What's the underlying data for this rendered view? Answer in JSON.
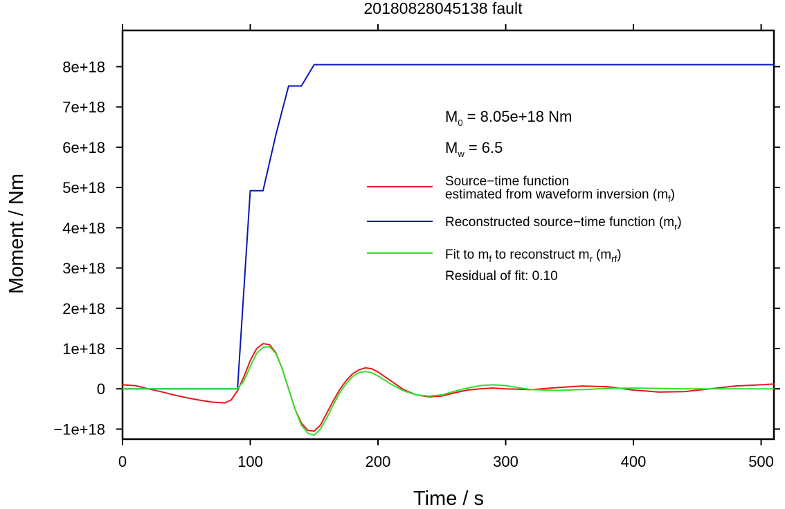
{
  "chart_data": {
    "type": "line",
    "title": "20180828045138 fault",
    "xlabel": "Time / s",
    "ylabel": "Moment / Nm",
    "xlim": [
      0,
      510
    ],
    "ylim": [
      -1.25e+18,
      8.9e+18
    ],
    "x_ticks": [
      0,
      100,
      200,
      300,
      400,
      500
    ],
    "x_tick_labels": [
      "0",
      "100",
      "200",
      "300",
      "400",
      "500"
    ],
    "y_ticks": [
      -1e+18,
      0,
      1e+18,
      2e+18,
      3e+18,
      4e+18,
      5e+18,
      6e+18,
      7e+18,
      8e+18
    ],
    "y_tick_labels": [
      "−1e+18",
      "0",
      "1e+18",
      "2e+18",
      "3e+18",
      "4e+18",
      "5e+18",
      "6e+18",
      "7e+18",
      "8e+18"
    ],
    "grid": false,
    "legend_position": "right",
    "annotations": {
      "m0_main": "M",
      "m0_sub": "0",
      "m0_rest": " = 8.05e+18 Nm",
      "mw_main": "M",
      "mw_sub": "w",
      "mw_rest": " = 6.5",
      "residual": "Residual of fit: 0.10"
    },
    "series": [
      {
        "name": "Source−time function estimated from waveform inversion (m_f)",
        "legend_line1": "Source−time function",
        "legend_line2_main": "estimated from waveform inversion (m",
        "legend_line2_sub": "f",
        "legend_line2_end": ")",
        "color": "#e8161b",
        "x": [
          0,
          10,
          20,
          30,
          40,
          50,
          60,
          70,
          80,
          85,
          90,
          95,
          100,
          105,
          110,
          115,
          120,
          125,
          130,
          135,
          140,
          145,
          150,
          155,
          160,
          165,
          170,
          175,
          180,
          185,
          190,
          195,
          200,
          210,
          220,
          230,
          240,
          250,
          260,
          270,
          280,
          290,
          300,
          320,
          340,
          360,
          380,
          400,
          420,
          440,
          460,
          480,
          500,
          510
        ],
        "y": [
          1e+17,
          8e+16,
          0.0,
          -7e+16,
          -1.5e+17,
          -2.2e+17,
          -2.8e+17,
          -3.3e+17,
          -3.5e+17,
          -2.8e+17,
          -5e+16,
          3e+17,
          7e+17,
          1e+18,
          1.12e+18,
          1.1e+18,
          9e+17,
          5e+17,
          0.0,
          -5e+17,
          -8.5e+17,
          -1.03e+18,
          -1.05e+18,
          -9e+17,
          -6e+17,
          -3e+17,
          -2e+16,
          2e+17,
          3.7e+17,
          4.7e+17,
          5.2e+17,
          5e+17,
          4.2e+17,
          2e+17,
          -2e+16,
          -1.5e+17,
          -2e+17,
          -1.8e+17,
          -1e+17,
          -3e+16,
          0.0,
          2e+16,
          0.0,
          -2e+16,
          3e+16,
          7e+16,
          5e+16,
          -3e+16,
          -8e+16,
          -7e+16,
          0.0,
          7e+16,
          1e+17,
          1.2e+17
        ]
      },
      {
        "name": "Reconstructed source−time function (m_r)",
        "legend_main": "Reconstructed source−time function (m",
        "legend_sub": "r",
        "legend_end": ")",
        "color": "#0b16b8",
        "x": [
          0,
          90,
          100,
          110,
          120,
          130,
          140,
          150,
          510
        ],
        "y": [
          0,
          0,
          4.92e+18,
          4.92e+18,
          6.3e+18,
          7.52e+18,
          7.52e+18,
          8.05e+18,
          8.05e+18
        ]
      },
      {
        "name": "Fit to m_f to reconstruct m_r (m_rf)",
        "legend_p1": "Fit to m",
        "legend_s1": "f",
        "legend_p2": " to reconstruct m",
        "legend_s2": "r",
        "legend_p3": " (m",
        "legend_s3": "rf",
        "legend_p4": ")",
        "color": "#33e02a",
        "x": [
          0,
          90,
          95,
          100,
          105,
          110,
          115,
          120,
          125,
          130,
          135,
          140,
          145,
          150,
          155,
          160,
          165,
          170,
          175,
          180,
          185,
          190,
          195,
          200,
          210,
          220,
          230,
          240,
          250,
          260,
          270,
          280,
          290,
          300,
          310,
          320,
          340,
          360,
          380,
          400,
          420,
          440,
          460,
          480,
          500,
          510
        ],
        "y": [
          0,
          0,
          2e+17,
          5.5e+17,
          8.8e+17,
          1.03e+18,
          1.05e+18,
          8.8e+17,
          5e+17,
          0.0,
          -5e+17,
          -9e+17,
          -1.1e+18,
          -1.15e+18,
          -1e+18,
          -7.2e+17,
          -4e+17,
          -1e+17,
          1.2e+17,
          3e+17,
          4e+17,
          4.3e+17,
          4e+17,
          3.2e+17,
          1.2e+17,
          -5e+16,
          -1.5e+17,
          -1.8e+17,
          -1.5e+17,
          -6e+16,
          2e+16,
          8e+16,
          1e+17,
          8e+16,
          3e+16,
          -2e+16,
          -4e+16,
          -2e+16,
          1e+16,
          2e+16,
          1e+16,
          0.0,
          0.0,
          0.0,
          0.0,
          0.0
        ]
      }
    ]
  }
}
